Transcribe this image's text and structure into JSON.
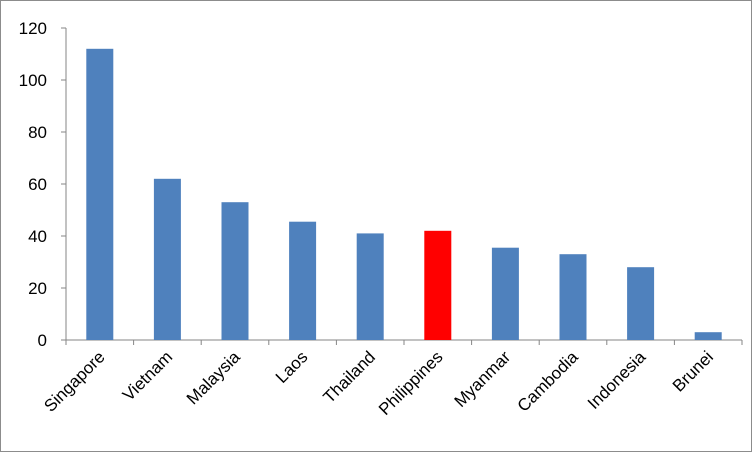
{
  "chart_data": {
    "type": "bar",
    "title": "",
    "xlabel": "",
    "ylabel": "",
    "ylim": [
      0,
      120
    ],
    "yticks": [
      0,
      20,
      40,
      60,
      80,
      100,
      120
    ],
    "grid": false,
    "legend": "none",
    "categories": [
      "Singapore",
      "Vietnam",
      "Malaysia",
      "Laos",
      "Thailand",
      "Philippines",
      "Myanmar",
      "Cambodia",
      "Indonesia",
      "Brunei"
    ],
    "series": [
      {
        "values": [
          112,
          62,
          53,
          45.5,
          41,
          42,
          35.5,
          33,
          28,
          3
        ]
      }
    ],
    "colors": {
      "default": "#4f81bd",
      "highlight": "#ff0000"
    },
    "highlight_category": "Philippines"
  }
}
